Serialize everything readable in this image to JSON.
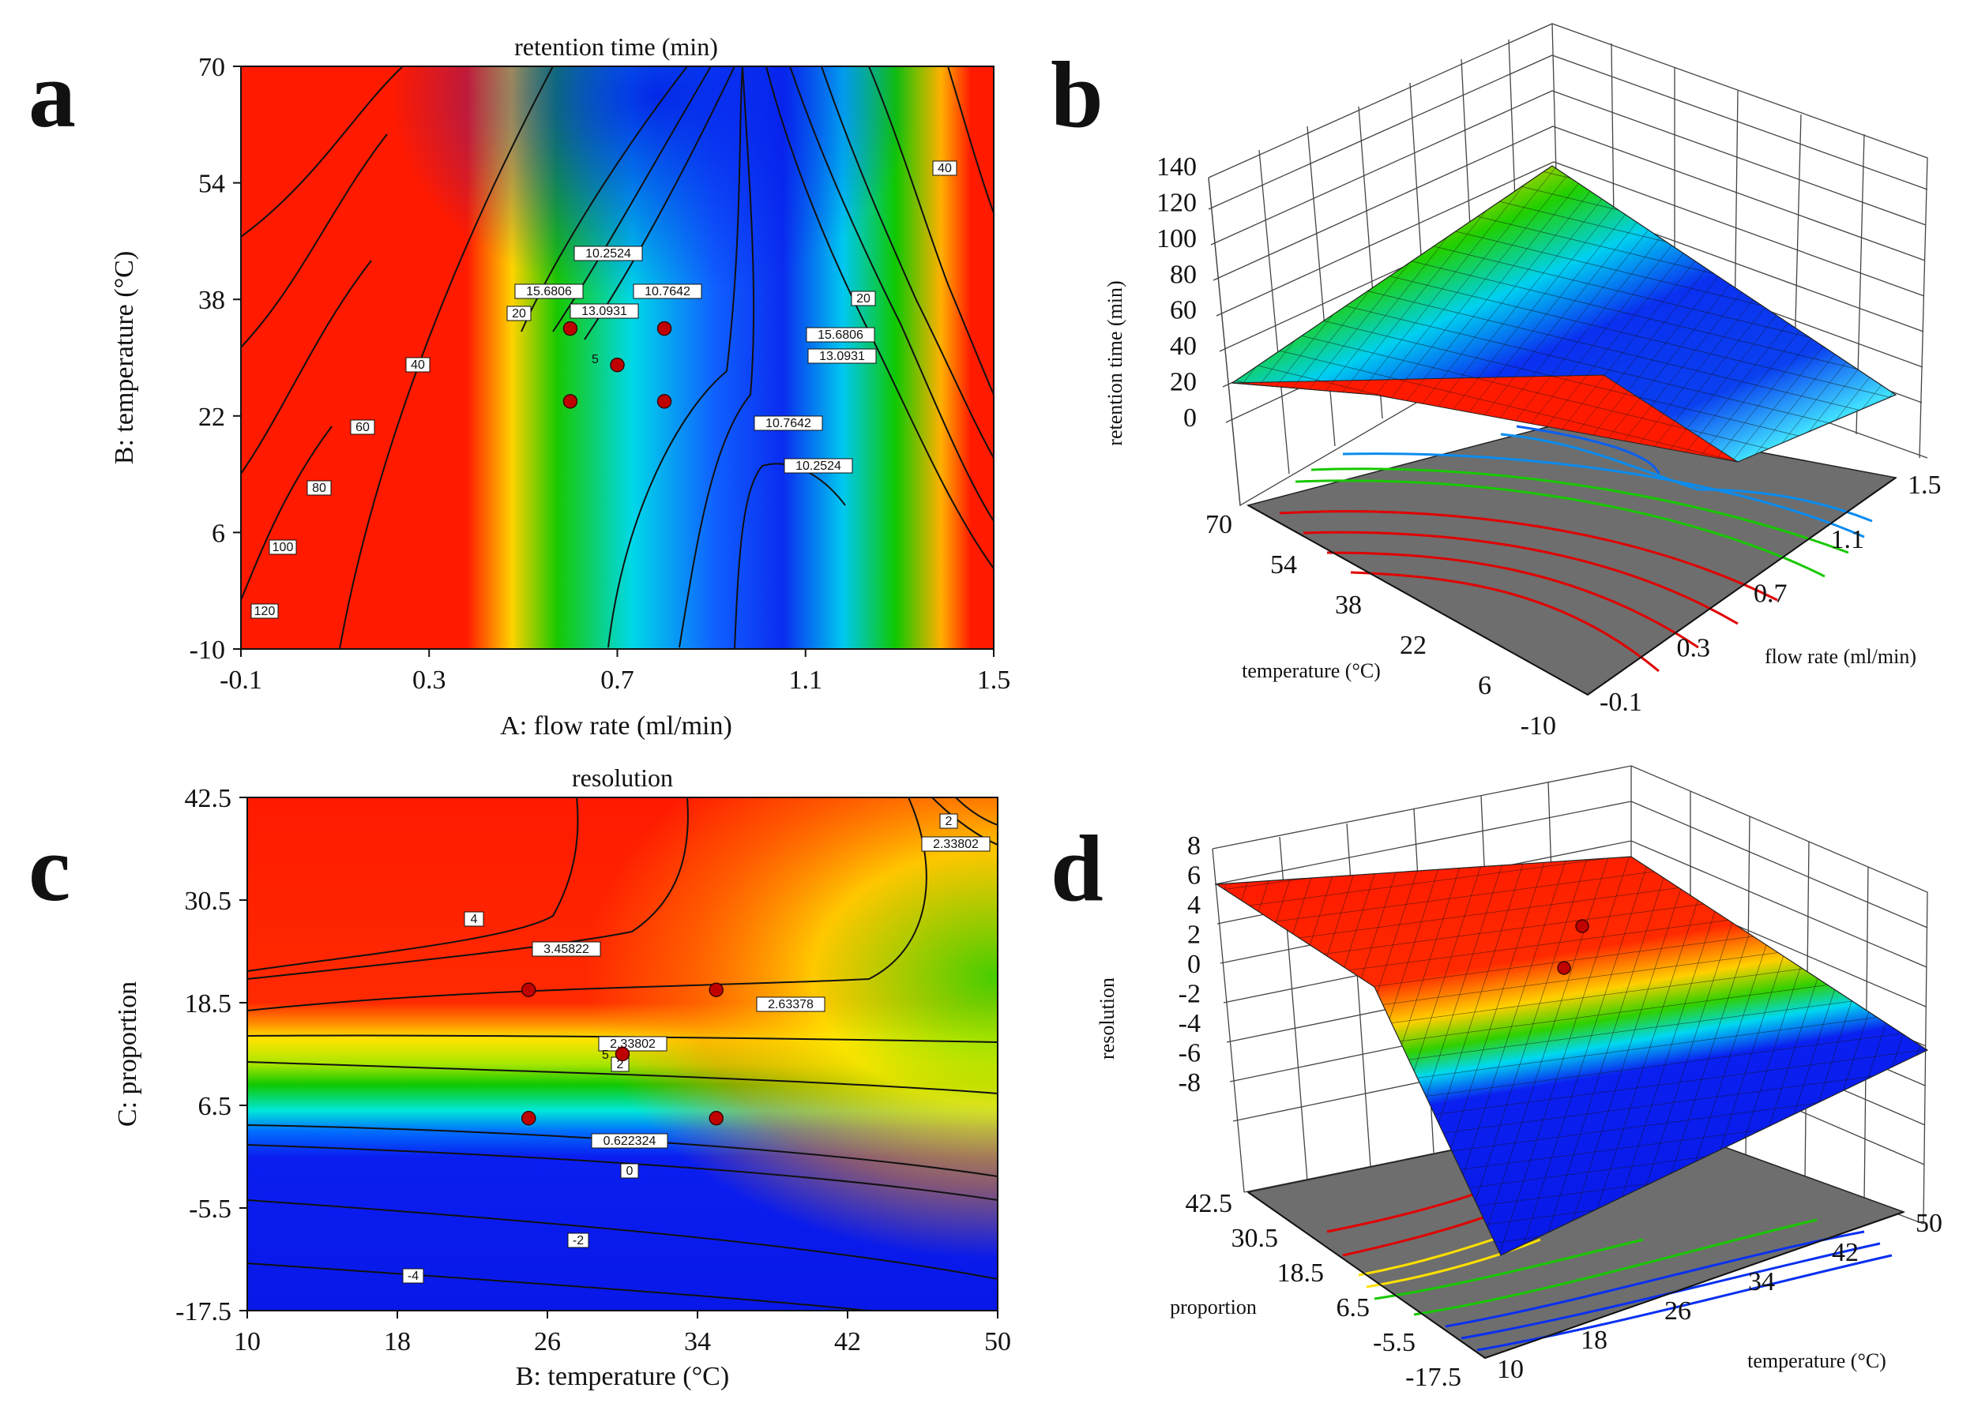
{
  "panels": {
    "a": {
      "letter": "a"
    },
    "b": {
      "letter": "b"
    },
    "c": {
      "letter": "c"
    },
    "d": {
      "letter": "d"
    }
  },
  "chart_data": [
    {
      "id": "a",
      "type": "heatmap",
      "subtype": "contour",
      "title": "retention time (min)",
      "xlabel": "A: flow rate (ml/min)",
      "ylabel": "B: temperature (°C)",
      "xlim": [
        -0.1,
        1.5
      ],
      "ylim": [
        -10,
        70
      ],
      "xticks": [
        "-0.1",
        "0.3",
        "0.7",
        "1.1",
        "1.5"
      ],
      "yticks": [
        "-10",
        "6",
        "22",
        "38",
        "54",
        "70"
      ],
      "contour_labels": [
        "120",
        "100",
        "80",
        "60",
        "40",
        "20",
        "15.6806",
        "13.0931",
        "10.7642",
        "10.2524",
        "10.7642",
        "13.0931",
        "15.6806",
        "20",
        "40"
      ],
      "design_points": [
        [
          0.6,
          24
        ],
        [
          0.8,
          24
        ],
        [
          0.7,
          29
        ],
        [
          0.6,
          34
        ],
        [
          0.8,
          34
        ]
      ],
      "center_marker": "5"
    },
    {
      "id": "b",
      "type": "surface",
      "zlabel": "retention time (min)",
      "xlabel": "flow rate (ml/min)",
      "ylabel": "temperature (°C)",
      "zticks": [
        "0",
        "20",
        "40",
        "60",
        "80",
        "100",
        "120",
        "140"
      ],
      "xticks": [
        "-0.1",
        "0.3",
        "0.7",
        "1.1",
        "1.5"
      ],
      "yticks": [
        "-10",
        "6",
        "22",
        "38",
        "54",
        "70"
      ]
    },
    {
      "id": "c",
      "type": "heatmap",
      "subtype": "contour",
      "title": "resolution",
      "xlabel": "B: temperature (°C)",
      "ylabel": "C: proportion",
      "xlim": [
        10,
        50
      ],
      "ylim": [
        -17.5,
        42.5
      ],
      "xticks": [
        "10",
        "18",
        "26",
        "34",
        "42",
        "50"
      ],
      "yticks": [
        "-17.5",
        "-5.5",
        "6.5",
        "18.5",
        "30.5",
        "42.5"
      ],
      "contour_labels": [
        "4",
        "3.45822",
        "2.63378",
        "2.33802",
        "2",
        "0.622324",
        "0",
        "-2",
        "-4",
        "2",
        "2.33802"
      ],
      "design_points": [
        [
          25,
          20
        ],
        [
          35,
          20
        ],
        [
          30,
          12.5
        ],
        [
          25,
          5
        ],
        [
          35,
          5
        ]
      ],
      "center_marker": "5"
    },
    {
      "id": "d",
      "type": "surface",
      "zlabel": "resolution",
      "xlabel": "temperature (°C)",
      "ylabel": "proportion",
      "zticks": [
        "-8",
        "-6",
        "-4",
        "-2",
        "0",
        "2",
        "4",
        "6",
        "8"
      ],
      "xticks": [
        "10",
        "18",
        "26",
        "34",
        "42",
        "50"
      ],
      "yticks": [
        "-17.5",
        "-5.5",
        "6.5",
        "18.5",
        "30.5",
        "42.5"
      ]
    }
  ]
}
